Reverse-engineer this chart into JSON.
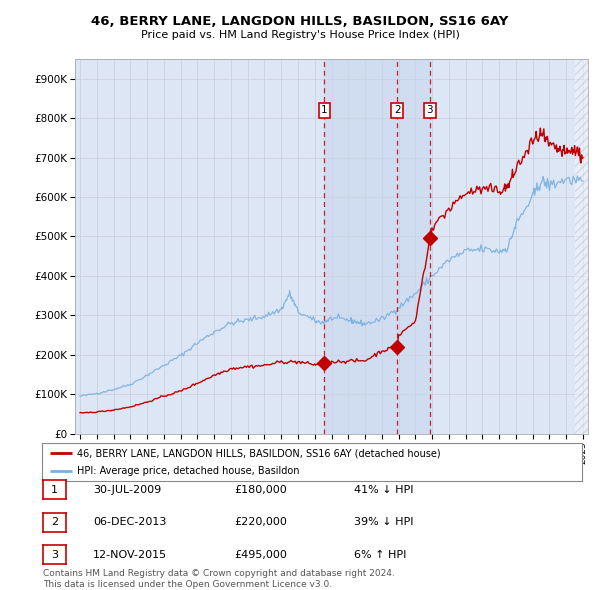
{
  "title1": "46, BERRY LANE, LANGDON HILLS, BASILDON, SS16 6AY",
  "title2": "Price paid vs. HM Land Registry's House Price Index (HPI)",
  "plot_bg_color": "#dce6f5",
  "legend_label_red": "46, BERRY LANE, LANGDON HILLS, BASILDON, SS16 6AY (detached house)",
  "legend_label_blue": "HPI: Average price, detached house, Basildon",
  "transactions": [
    {
      "num": 1,
      "date": "30-JUL-2009",
      "price": 180000,
      "pct": "41%",
      "dir": "↓",
      "x": 2009.58
    },
    {
      "num": 2,
      "date": "06-DEC-2013",
      "price": 220000,
      "pct": "39%",
      "dir": "↓",
      "x": 2013.92
    },
    {
      "num": 3,
      "date": "12-NOV-2015",
      "price": 495000,
      "pct": "6%",
      "dir": "↑",
      "x": 2015.87
    }
  ],
  "footnote1": "Contains HM Land Registry data © Crown copyright and database right 2024.",
  "footnote2": "This data is licensed under the Open Government Licence v3.0.",
  "hpi_color": "#7ab0e0",
  "price_color": "#c00000",
  "vline_color": "#cc0000",
  "highlight_color": "#d0e0f5",
  "yticks": [
    0,
    100000,
    200000,
    300000,
    400000,
    500000,
    600000,
    700000,
    800000,
    900000
  ],
  "ylim": [
    0,
    950000
  ],
  "xlim_left": 1994.7,
  "xlim_right": 2025.3
}
